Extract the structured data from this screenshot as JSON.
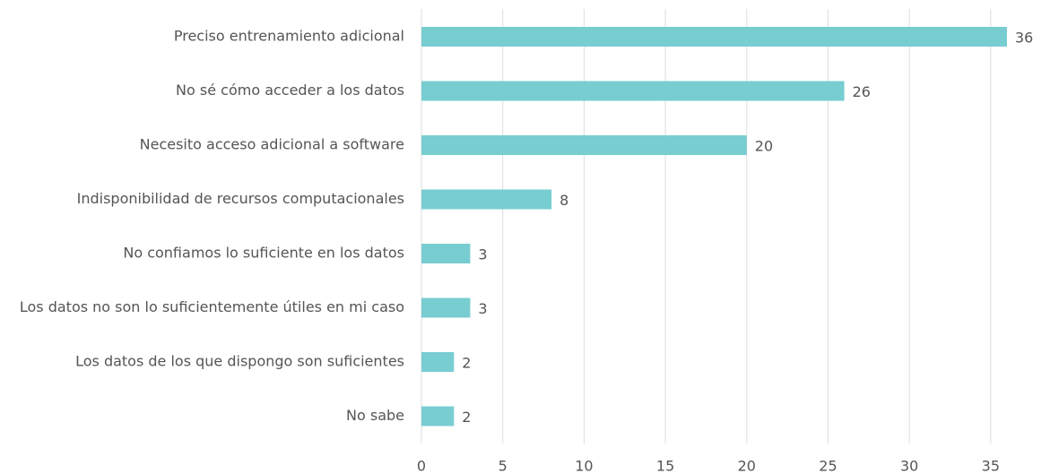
{
  "chart_data": {
    "type": "bar",
    "orientation": "horizontal",
    "categories": [
      "Preciso entrenamiento adicional",
      "No sé cómo acceder a los datos",
      "Necesito acceso adicional a software",
      "Indisponibilidad de recursos computacionales",
      "No confiamos lo suficiente en los datos",
      "Los datos no son lo suficientemente útiles en mi caso",
      "Los datos de los que dispongo son suficientes",
      "No sabe"
    ],
    "values": [
      36,
      26,
      20,
      8,
      3,
      3,
      2,
      2
    ],
    "color": "#78cdd1",
    "xlim": [
      0,
      36
    ],
    "xticks": [
      0,
      5,
      10,
      15,
      20,
      25,
      30,
      35
    ],
    "grid": true
  }
}
